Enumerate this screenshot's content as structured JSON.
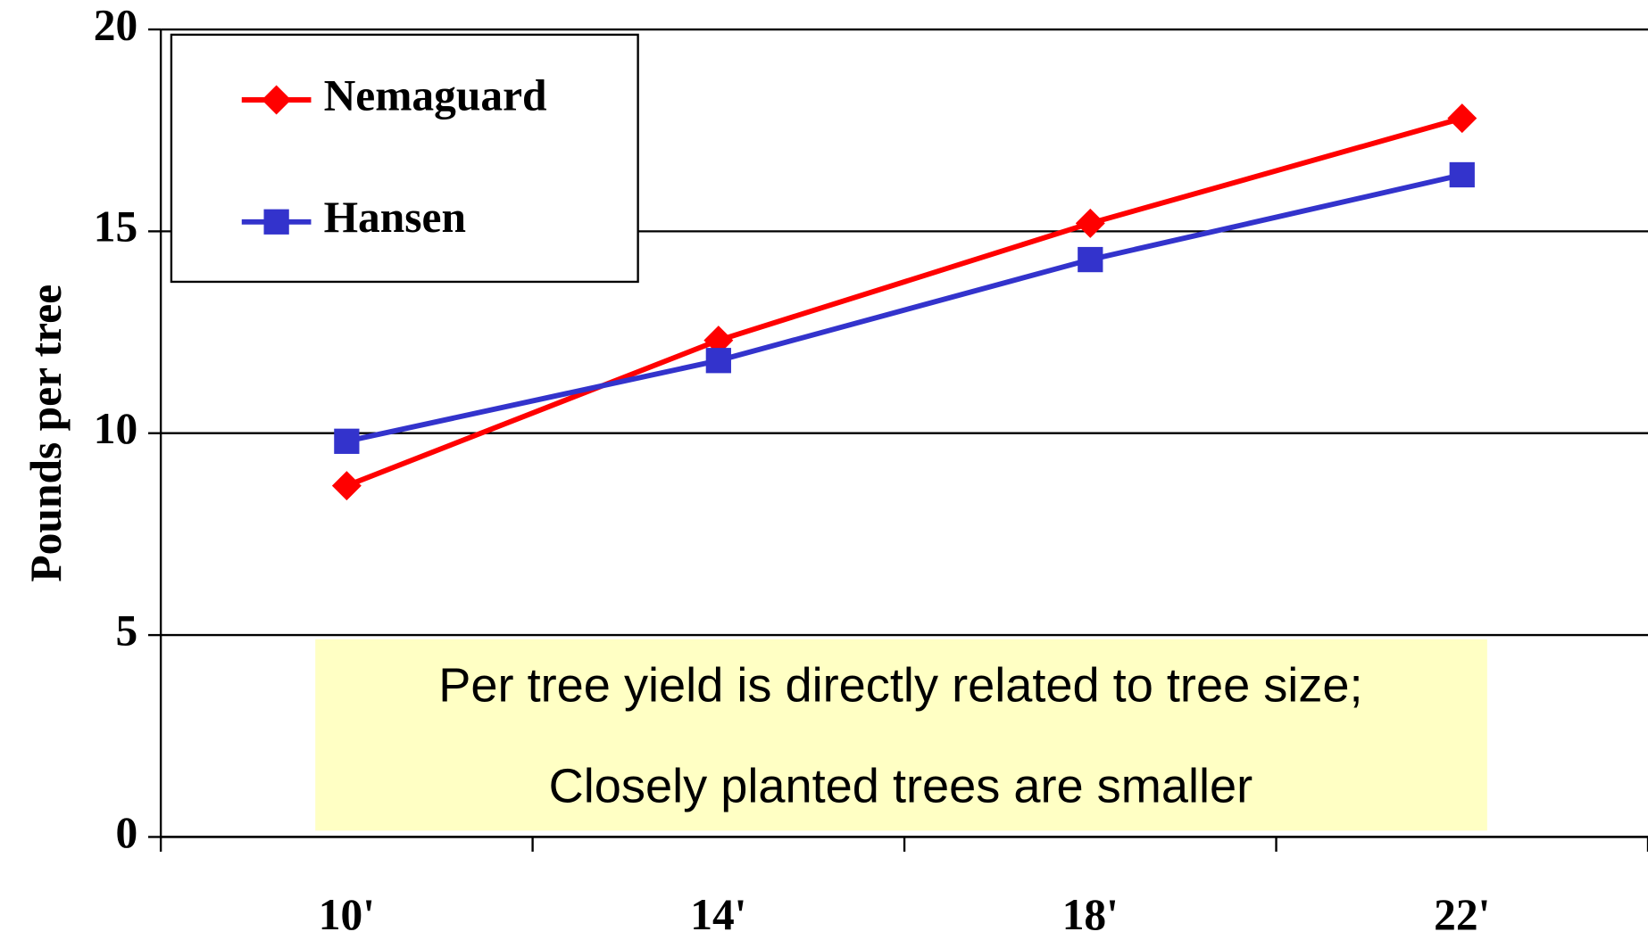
{
  "chart_data": {
    "type": "line",
    "y_label": "Pounds per tree",
    "categories": [
      "10'",
      "14'",
      "18'",
      "22'"
    ],
    "series": [
      {
        "name": "Nemaguard",
        "color": "#ff0000",
        "marker": "diamond",
        "values": [
          8.7,
          12.3,
          15.2,
          17.8
        ]
      },
      {
        "name": "Hansen",
        "color": "#3333cc",
        "marker": "square",
        "values": [
          9.8,
          11.8,
          14.3,
          16.4
        ]
      }
    ],
    "ylim": [
      0,
      20
    ],
    "yticks": [
      0,
      5,
      10,
      15,
      20
    ],
    "grid": true,
    "legend": "upper left",
    "annotation": [
      "Per tree yield is directly related to tree size;",
      "Closely planted trees are smaller"
    ]
  }
}
